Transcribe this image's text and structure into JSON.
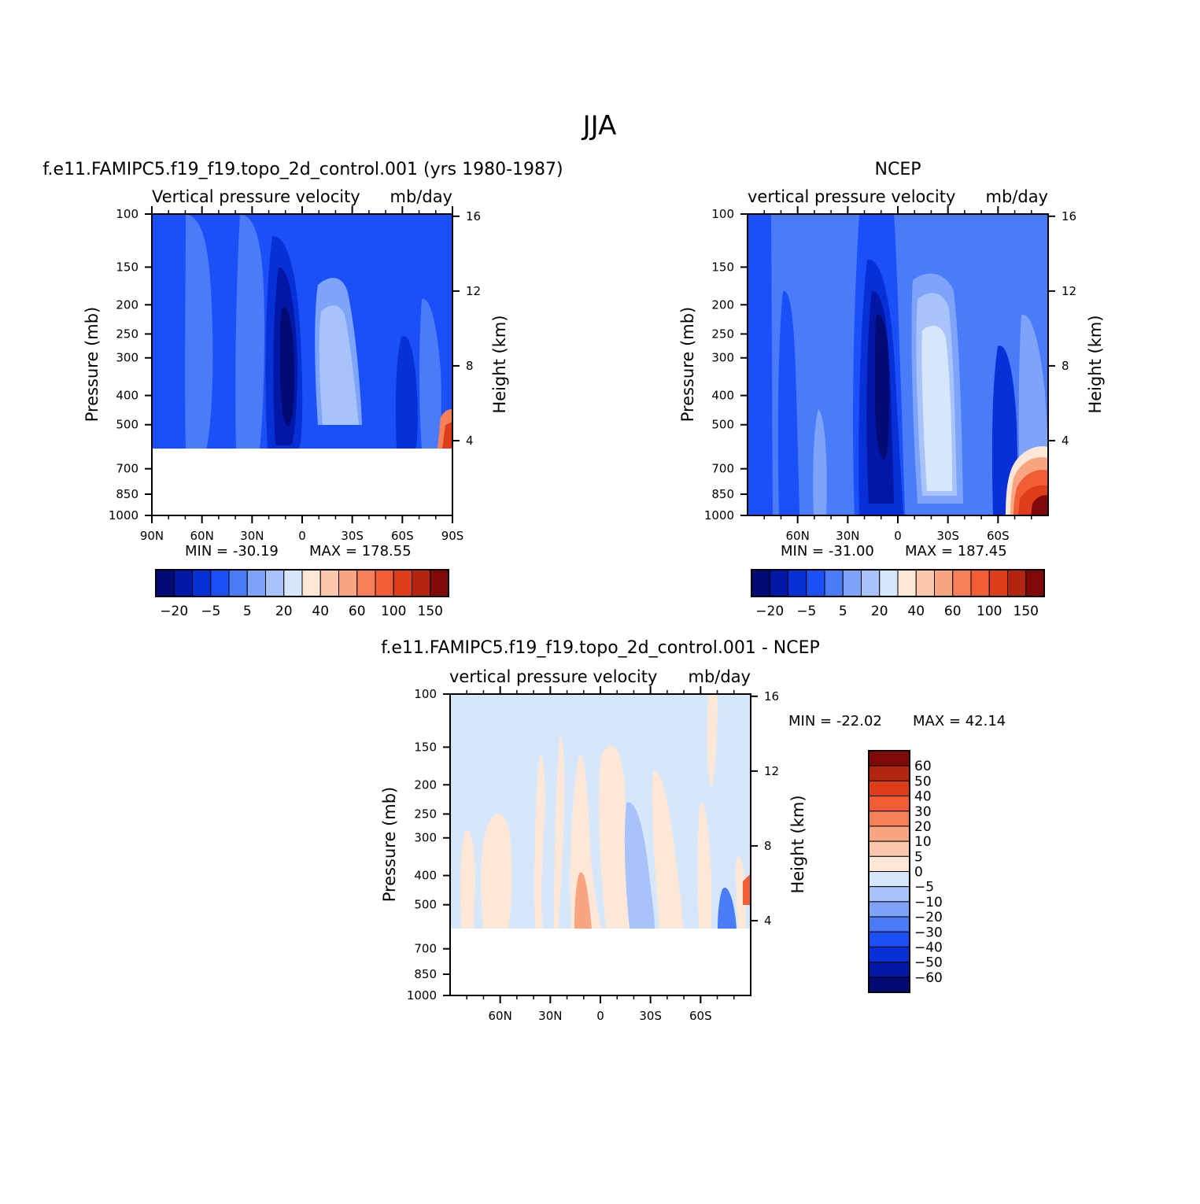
{
  "figure_title": "JJA",
  "colors": {
    "diverging_scale": [
      "#020a73",
      "#0317a6",
      "#0731d6",
      "#1b4ff7",
      "#4a7cf9",
      "#7ea4f9",
      "#a8c3fa",
      "#d6e6fb",
      "#fde8d8",
      "#fbc8ad",
      "#f8a682",
      "#f7805a",
      "#f15d35",
      "#de3d1a",
      "#b3250e",
      "#7f0808"
    ]
  },
  "chart_data": [
    {
      "type": "heatmap",
      "title": "f.e11.FAMIPC5.f19_f19.topo_2d_control.001 (yrs 1980-1987)",
      "subtitle_left": "Vertical pressure velocity",
      "subtitle_right": "mb/day",
      "ylabel_left": "Pressure (mb)",
      "ylabel_right": "Height (km)",
      "xlabel": "",
      "x_ticks": [
        "90N",
        "60N",
        "30N",
        "0",
        "30S",
        "60S",
        "90S"
      ],
      "x_range": [
        90,
        -90
      ],
      "y_ticks": [
        100,
        150,
        200,
        250,
        300,
        400,
        500,
        700,
        850,
        1000
      ],
      "y_range": [
        100,
        1000
      ],
      "y_scale": "log",
      "right_ticks": [
        16,
        12,
        8,
        4
      ],
      "data_cutoff_mb": 600,
      "min_label": "MIN = -30.19",
      "max_label": "MAX = 178.55",
      "colorbar": {
        "orientation": "horizontal",
        "levels": [
          -30,
          -20,
          -10,
          -5,
          0,
          5,
          10,
          20,
          30,
          40,
          50,
          60,
          80,
          100,
          120,
          150,
          180
        ],
        "tick_labels": [
          "-20",
          "-5",
          "5",
          "20",
          "40",
          "60",
          "100",
          "150"
        ]
      }
    },
    {
      "type": "heatmap",
      "title": "NCEP",
      "subtitle_left": "vertical pressure velocity",
      "subtitle_right": "mb/day",
      "ylabel_left": "Pressure (mb)",
      "ylabel_right": "Height (km)",
      "xlabel": "",
      "x_ticks": [
        "60N",
        "30N",
        "0",
        "30S",
        "60S"
      ],
      "x_range": [
        90,
        -90
      ],
      "y_ticks": [
        100,
        150,
        200,
        250,
        300,
        400,
        500,
        700,
        850,
        1000
      ],
      "y_range": [
        100,
        1000
      ],
      "y_scale": "log",
      "right_ticks": [
        16,
        12,
        8,
        4
      ],
      "data_cutoff_mb": 1000,
      "min_label": "MIN = -31.00",
      "max_label": "MAX = 187.45",
      "colorbar": {
        "orientation": "horizontal",
        "levels": [
          -30,
          -20,
          -10,
          -5,
          0,
          5,
          10,
          20,
          30,
          40,
          50,
          60,
          80,
          100,
          120,
          150,
          180
        ],
        "tick_labels": [
          "-20",
          "-5",
          "5",
          "20",
          "40",
          "60",
          "100",
          "150"
        ]
      }
    },
    {
      "type": "heatmap",
      "title": "f.e11.FAMIPC5.f19_f19.topo_2d_control.001 - NCEP",
      "subtitle_left": "vertical pressure velocity",
      "subtitle_right": "mb/day",
      "ylabel_left": "Pressure (mb)",
      "ylabel_right": "Height (km)",
      "xlabel": "",
      "x_ticks": [
        "60N",
        "30N",
        "0",
        "30S",
        "60S"
      ],
      "x_range": [
        90,
        -90
      ],
      "y_ticks": [
        100,
        150,
        200,
        250,
        300,
        400,
        500,
        700,
        850,
        1000
      ],
      "y_range": [
        100,
        1000
      ],
      "y_scale": "log",
      "right_ticks": [
        16,
        12,
        8,
        4
      ],
      "data_cutoff_mb": 600,
      "min_label": "MIN = -22.02",
      "max_label": "MAX = 42.14",
      "colorbar": {
        "orientation": "vertical",
        "tick_labels": [
          "60",
          "50",
          "40",
          "30",
          "20",
          "10",
          "5",
          "0",
          "-5",
          "-10",
          "-20",
          "-30",
          "-40",
          "-50",
          "-60"
        ]
      }
    }
  ]
}
